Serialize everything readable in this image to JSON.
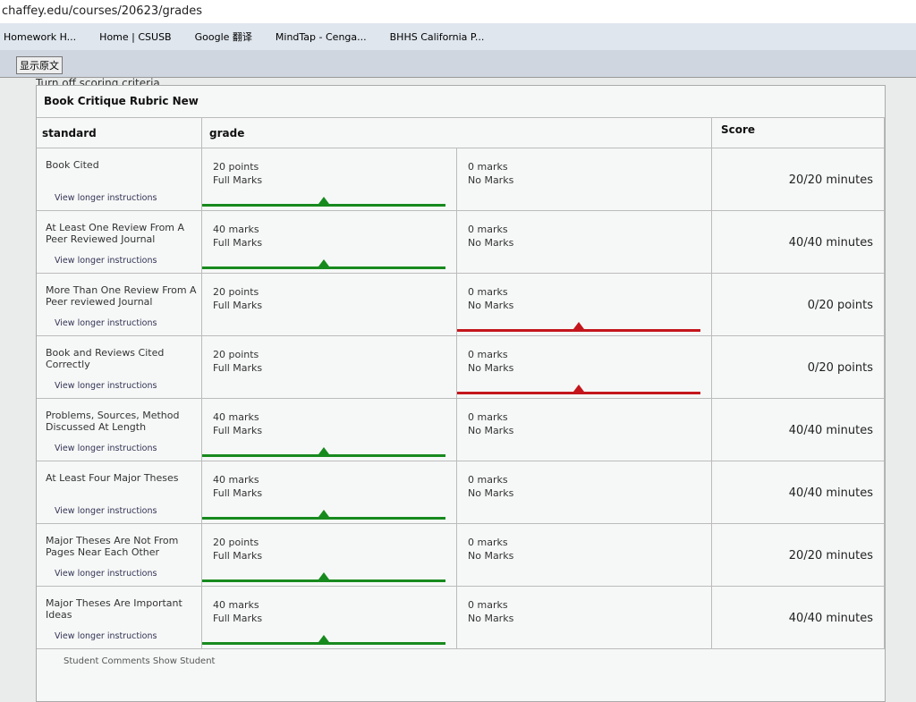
{
  "browser": {
    "url": "chaffey.edu/courses/20623/grades",
    "bookmarks": [
      "Homework H...",
      "Home | CSUSB",
      "Google 翻译",
      "MindTap - Cenga...",
      "BHHS California P..."
    ],
    "translate_button": "显示原文"
  },
  "toggle": "Turn off scoring criteria",
  "rubric": {
    "title": "Book Critique Rubric New",
    "headers": {
      "standard": "standard",
      "grade": "grade",
      "score": "Score"
    },
    "selected_colors": {
      "full": "#178a1e",
      "none": "#c4161c"
    },
    "rows": [
      {
        "criterion": "Book Cited",
        "instructions": "View longer instructions",
        "high_points": "20 points",
        "high_label": "Full Marks",
        "low_points": "0 marks",
        "low_label": "No Marks",
        "score": "20/20 minutes",
        "selected": "full"
      },
      {
        "criterion": "At Least One Review From A Peer Reviewed Journal",
        "instructions": "View longer instructions",
        "high_points": "40 marks",
        "high_label": "Full Marks",
        "low_points": "0 marks",
        "low_label": "No Marks",
        "score": "40/40 minutes",
        "selected": "full"
      },
      {
        "criterion": "More Than One Review From A Peer reviewed Journal",
        "instructions": "View longer instructions",
        "high_points": "20 points",
        "high_label": "Full Marks",
        "low_points": "0 marks",
        "low_label": "No Marks",
        "score": "0/20 points",
        "selected": "none"
      },
      {
        "criterion": "Book and Reviews Cited Correctly",
        "instructions": "View longer instructions",
        "high_points": "20 points",
        "high_label": "Full Marks",
        "low_points": "0 marks",
        "low_label": "No Marks",
        "score": "0/20 points",
        "selected": "none"
      },
      {
        "criterion": "Problems, Sources, Method Discussed At Length",
        "instructions": "View longer instructions",
        "high_points": "40 marks",
        "high_label": "Full Marks",
        "low_points": "0 marks",
        "low_label": "No Marks",
        "score": "40/40 minutes",
        "selected": "full"
      },
      {
        "criterion": "At Least Four Major Theses",
        "instructions": "View longer instructions",
        "high_points": "40 marks",
        "high_label": "Full Marks",
        "low_points": "0 marks",
        "low_label": "No Marks",
        "score": "40/40 minutes",
        "selected": "full"
      },
      {
        "criterion": "Major Theses Are Not From Pages Near Each Other",
        "instructions": "View longer instructions",
        "high_points": "20 points",
        "high_label": "Full Marks",
        "low_points": "0 marks",
        "low_label": "No Marks",
        "score": "20/20 minutes",
        "selected": "full"
      },
      {
        "criterion": "Major Theses Are Important Ideas",
        "instructions": "View longer instructions",
        "high_points": "40 marks",
        "high_label": "Full Marks",
        "low_points": "0 marks",
        "low_label": "No Marks",
        "score": "40/40 minutes",
        "selected": "full"
      }
    ],
    "footer": "Student Comments Show Student"
  }
}
